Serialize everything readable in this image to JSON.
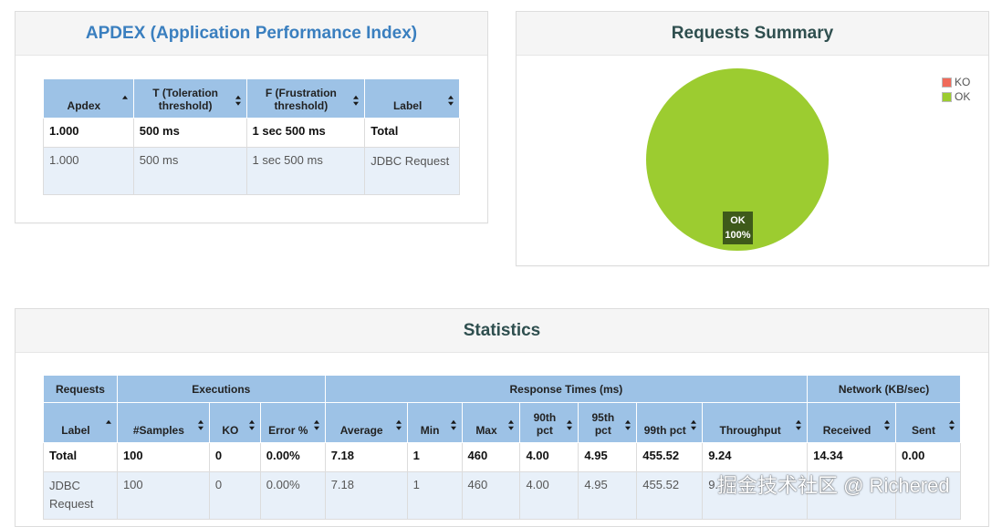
{
  "apdex": {
    "title": "APDEX (Application Performance Index)",
    "headers": [
      "Apdex",
      "T (Toleration threshold)",
      "F (Frustration threshold)",
      "Label"
    ],
    "rows": [
      [
        "1.000",
        "500 ms",
        "1 sec 500 ms",
        "Total"
      ],
      [
        "1.000",
        "500 ms",
        "1 sec 500 ms",
        "JDBC Request"
      ]
    ]
  },
  "summary": {
    "title": "Requests Summary",
    "legend": [
      {
        "label": "KO",
        "color": "#f06a5a"
      },
      {
        "label": "OK",
        "color": "#9ccc30"
      }
    ],
    "slice_label": "OK",
    "slice_pct": "100%"
  },
  "chart_data": {
    "type": "pie",
    "title": "Requests Summary",
    "categories": [
      "KO",
      "OK"
    ],
    "values": [
      0,
      100
    ],
    "colors": [
      "#f06a5a",
      "#9ccc30"
    ],
    "legend_position": "top-right"
  },
  "statistics": {
    "title": "Statistics",
    "groups": [
      "Requests",
      "Executions",
      "Response Times (ms)",
      "Network (KB/sec)"
    ],
    "headers": [
      "Label",
      "#Samples",
      "KO",
      "Error %",
      "Average",
      "Min",
      "Max",
      "90th pct",
      "95th pct",
      "99th pct",
      "Throughput",
      "Received",
      "Sent"
    ],
    "rows": [
      [
        "Total",
        "100",
        "0",
        "0.00%",
        "7.18",
        "1",
        "460",
        "4.00",
        "4.95",
        "455.52",
        "9.24",
        "14.34",
        "0.00"
      ],
      [
        "JDBC Request",
        "100",
        "0",
        "0.00%",
        "7.18",
        "1",
        "460",
        "4.00",
        "4.95",
        "455.52",
        "9.",
        "",
        ""
      ]
    ]
  },
  "watermark": "掘金技术社区 @ Richered"
}
